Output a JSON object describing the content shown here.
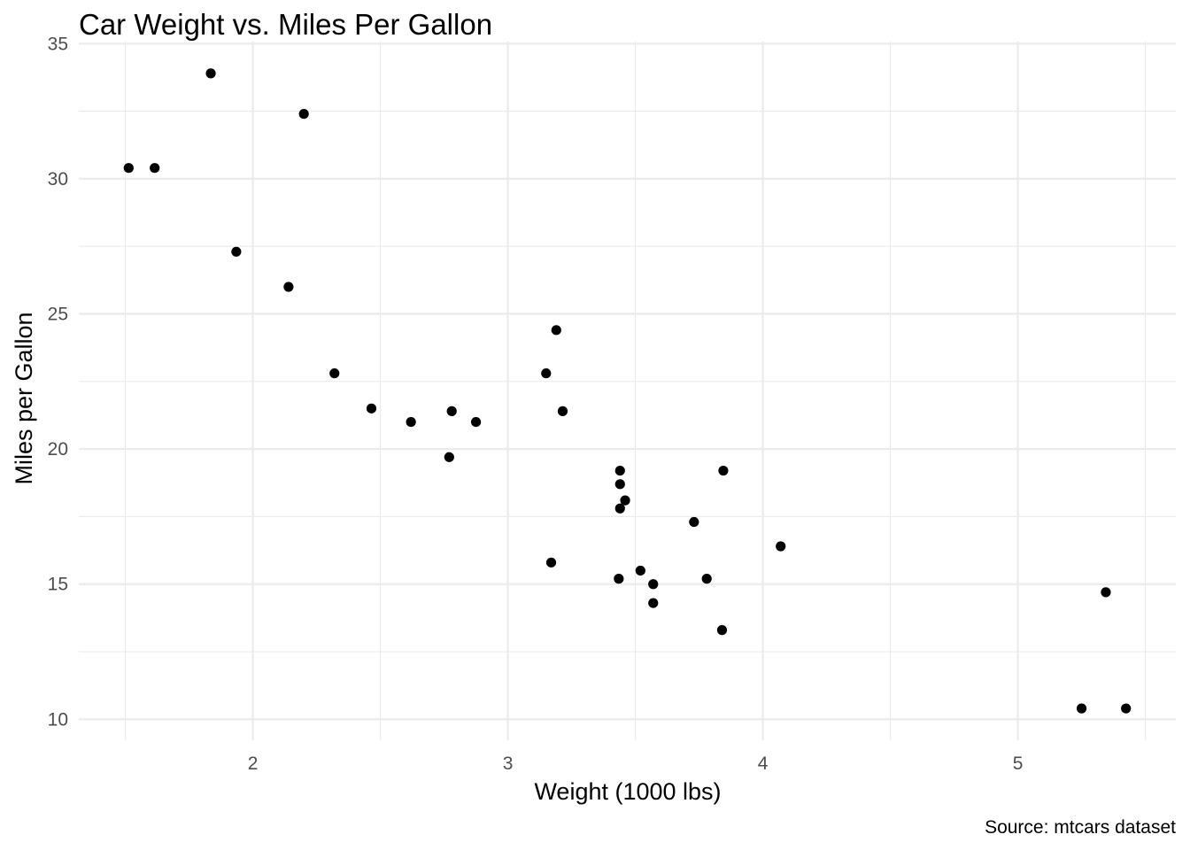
{
  "chart_data": {
    "type": "scatter",
    "title": "Car Weight vs. Miles Per Gallon",
    "xlabel": "Weight (1000 lbs)",
    "ylabel": "Miles per Gallon",
    "caption": "Source: mtcars dataset",
    "xlim": [
      1.513,
      5.424
    ],
    "ylim": [
      10.4,
      33.9
    ],
    "x_ticks": [
      2,
      3,
      4,
      5
    ],
    "x_tick_labels": [
      "2",
      "3",
      "4",
      "5"
    ],
    "x_minor_ticks": [
      1.5,
      2.5,
      3.5,
      4.5,
      5.5
    ],
    "y_ticks": [
      10,
      15,
      20,
      25,
      30,
      35
    ],
    "y_tick_labels": [
      "10",
      "15",
      "20",
      "25",
      "30",
      "35"
    ],
    "y_minor_ticks": [
      12.5,
      17.5,
      22.5,
      27.5,
      32.5
    ],
    "grid": true,
    "point_color": "#000000",
    "grid_color": "#ebebeb",
    "points": [
      {
        "x": 2.62,
        "y": 21.0
      },
      {
        "x": 2.875,
        "y": 21.0
      },
      {
        "x": 2.32,
        "y": 22.8
      },
      {
        "x": 3.215,
        "y": 21.4
      },
      {
        "x": 3.44,
        "y": 18.7
      },
      {
        "x": 3.46,
        "y": 18.1
      },
      {
        "x": 3.57,
        "y": 14.3
      },
      {
        "x": 3.19,
        "y": 24.4
      },
      {
        "x": 3.15,
        "y": 22.8
      },
      {
        "x": 3.44,
        "y": 19.2
      },
      {
        "x": 3.44,
        "y": 17.8
      },
      {
        "x": 4.07,
        "y": 16.4
      },
      {
        "x": 3.73,
        "y": 17.3
      },
      {
        "x": 3.78,
        "y": 15.2
      },
      {
        "x": 5.25,
        "y": 10.4
      },
      {
        "x": 5.424,
        "y": 10.4
      },
      {
        "x": 5.345,
        "y": 14.7
      },
      {
        "x": 2.2,
        "y": 32.4
      },
      {
        "x": 1.615,
        "y": 30.4
      },
      {
        "x": 1.835,
        "y": 33.9
      },
      {
        "x": 2.465,
        "y": 21.5
      },
      {
        "x": 3.52,
        "y": 15.5
      },
      {
        "x": 3.435,
        "y": 15.2
      },
      {
        "x": 3.84,
        "y": 13.3
      },
      {
        "x": 3.845,
        "y": 19.2
      },
      {
        "x": 1.935,
        "y": 27.3
      },
      {
        "x": 2.14,
        "y": 26.0
      },
      {
        "x": 1.513,
        "y": 30.4
      },
      {
        "x": 3.17,
        "y": 15.8
      },
      {
        "x": 2.77,
        "y": 19.7
      },
      {
        "x": 3.57,
        "y": 15.0
      },
      {
        "x": 2.78,
        "y": 21.4
      }
    ]
  }
}
